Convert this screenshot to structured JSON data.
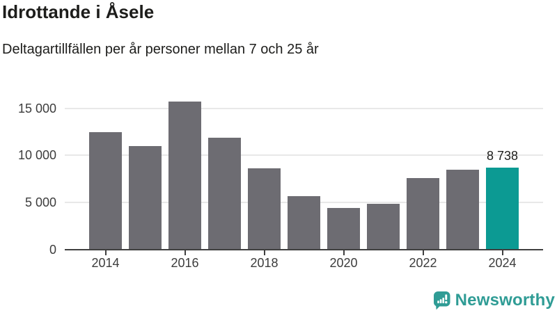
{
  "chart_data": {
    "type": "bar",
    "title": "Idrottande i Åsele",
    "subtitle": "Deltagartillfällen per år personer mellan 7 och 25 år",
    "categories": [
      "2014",
      "2015",
      "2016",
      "2017",
      "2018",
      "2019",
      "2020",
      "2021",
      "2022",
      "2023",
      "2024"
    ],
    "values": [
      12500,
      11000,
      15700,
      11900,
      8600,
      5700,
      4400,
      4900,
      7600,
      8500,
      8738
    ],
    "highlight": {
      "index": 10,
      "label": "8 738"
    },
    "xlabel": "",
    "ylabel": "",
    "ylim": [
      0,
      16300
    ],
    "y_ticks": [
      {
        "value": 0,
        "label": "0"
      },
      {
        "value": 5000,
        "label": "5 000"
      },
      {
        "value": 10000,
        "label": "10 000"
      },
      {
        "value": 15000,
        "label": "15 000"
      }
    ],
    "x_tick_labels": [
      "2014",
      "2016",
      "2018",
      "2020",
      "2022",
      "2024"
    ],
    "grid": "horizontal",
    "legend": "none",
    "bar_color": "#6d6c72",
    "highlight_color": "#0c9a93",
    "axis_color": "#3f3f3f",
    "gridline_color": "#e8e8e8"
  },
  "branding": {
    "logo_text": "Newsworthy",
    "logo_color": "#2f9c95"
  }
}
